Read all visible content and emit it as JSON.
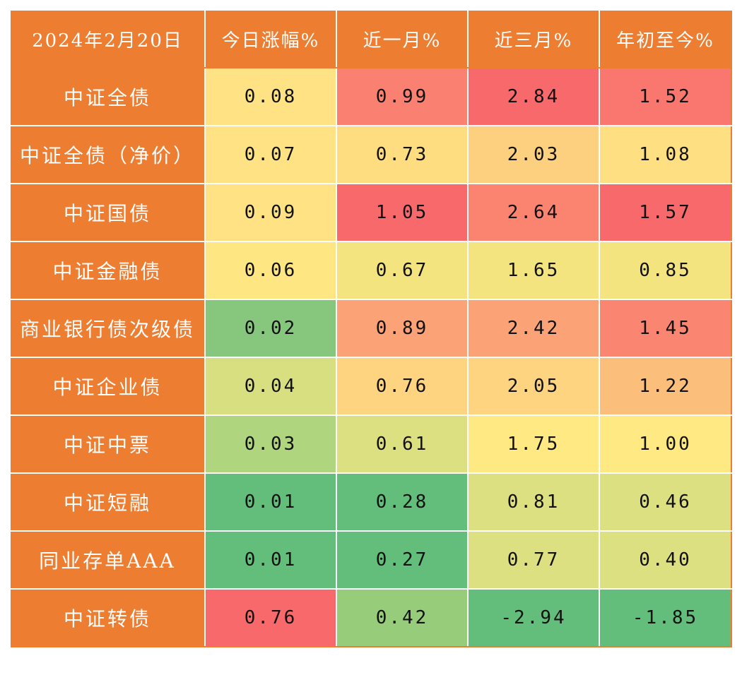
{
  "table": {
    "header": [
      "2024年2月20日",
      "今日涨幅%",
      "近一月%",
      "近三月%",
      "年初至今%"
    ],
    "header_color": "#ed7d31",
    "rows": [
      {
        "name": "中证全债",
        "values": [
          "0.08",
          "0.99",
          "2.84",
          "1.52"
        ],
        "colors": [
          "#fee283",
          "#fa8072",
          "#f8696b",
          "#f9776e"
        ]
      },
      {
        "name": "中证全债（净价）",
        "values": [
          "0.07",
          "0.73",
          "2.03",
          "1.08"
        ],
        "colors": [
          "#fee283",
          "#fedd81",
          "#fcd07e",
          "#fee082"
        ]
      },
      {
        "name": "中证国债",
        "values": [
          "0.09",
          "1.05",
          "2.64",
          "1.57"
        ],
        "colors": [
          "#fee283",
          "#f8696b",
          "#fa8470",
          "#f8696b"
        ]
      },
      {
        "name": "中证金融债",
        "values": [
          "0.06",
          "0.67",
          "1.65",
          "0.85"
        ],
        "colors": [
          "#fee783",
          "#f4e47f",
          "#f4e47f",
          "#f4e47f"
        ]
      },
      {
        "name": "商业银行债次级债",
        "values": [
          "0.02",
          "0.89",
          "2.42",
          "1.45"
        ],
        "colors": [
          "#87c77d",
          "#fca277",
          "#fca277",
          "#fa8570"
        ]
      },
      {
        "name": "中证企业债",
        "values": [
          "0.04",
          "0.76",
          "2.05",
          "1.22"
        ],
        "colors": [
          "#d8df81",
          "#fed480",
          "#fed480",
          "#fcbf7b"
        ]
      },
      {
        "name": "中证中票",
        "values": [
          "0.03",
          "0.61",
          "1.75",
          "1.00"
        ],
        "colors": [
          "#b0d57f",
          "#dde081",
          "#fee983",
          "#fee983"
        ]
      },
      {
        "name": "中证短融",
        "values": [
          "0.01",
          "0.28",
          "0.81",
          "0.46"
        ],
        "colors": [
          "#63be7b",
          "#63be7b",
          "#dde081",
          "#dde081"
        ]
      },
      {
        "name": "同业存单AAA",
        "values": [
          "0.01",
          "0.27",
          "0.77",
          "0.40"
        ],
        "colors": [
          "#63be7b",
          "#63be7b",
          "#dde081",
          "#dde081"
        ]
      },
      {
        "name": "中证转债",
        "values": [
          "0.76",
          "0.42",
          "-2.94",
          "-1.85"
        ],
        "colors": [
          "#f8696b",
          "#97cc7b",
          "#63be7b",
          "#63be7b"
        ]
      }
    ]
  },
  "chart_data": {
    "type": "heatmap",
    "title": "2024年2月20日",
    "columns": [
      "今日涨幅%",
      "近一月%",
      "近三月%",
      "年初至今%"
    ],
    "categories": [
      "中证全债",
      "中证全债（净价）",
      "中证国债",
      "中证金融债",
      "商业银行债次级债",
      "中证企业债",
      "中证中票",
      "中证短融",
      "同业存单AAA",
      "中证转债"
    ],
    "series": [
      {
        "name": "今日涨幅%",
        "values": [
          0.08,
          0.07,
          0.09,
          0.06,
          0.02,
          0.04,
          0.03,
          0.01,
          0.01,
          0.76
        ]
      },
      {
        "name": "近一月%",
        "values": [
          0.99,
          0.73,
          1.05,
          0.67,
          0.89,
          0.76,
          0.61,
          0.28,
          0.27,
          0.42
        ]
      },
      {
        "name": "近三月%",
        "values": [
          2.84,
          2.03,
          2.64,
          1.65,
          2.42,
          2.05,
          1.75,
          0.81,
          0.77,
          -2.94
        ]
      },
      {
        "name": "年初至今%",
        "values": [
          1.52,
          1.08,
          1.57,
          0.85,
          1.45,
          1.22,
          1.0,
          0.46,
          0.4,
          -1.85
        ]
      }
    ],
    "color_scale": {
      "low": "#63be7b",
      "mid": "#ffeb84",
      "high": "#f8696b"
    },
    "grid": true,
    "legend": "none"
  }
}
